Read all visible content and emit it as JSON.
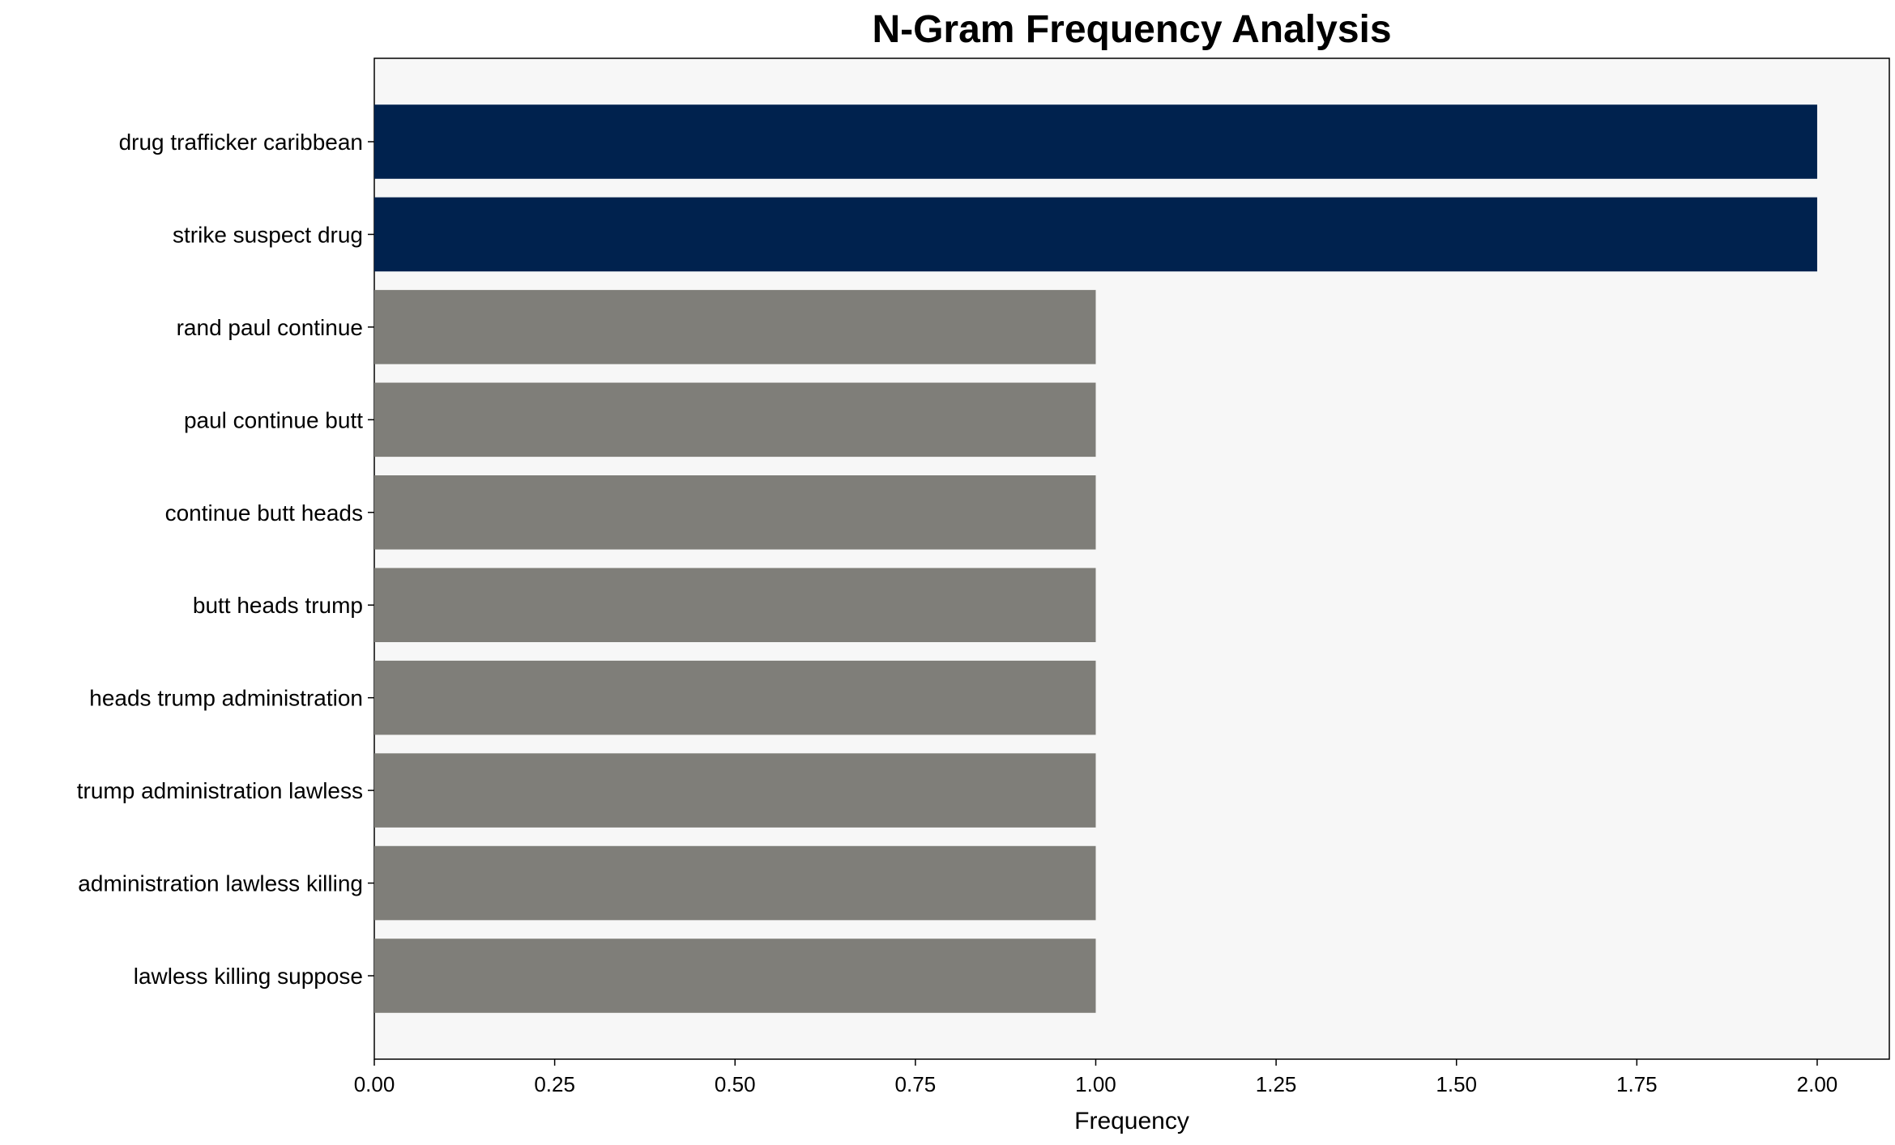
{
  "chart_data": {
    "type": "bar",
    "orientation": "horizontal",
    "title": "N-Gram Frequency Analysis",
    "xlabel": "Frequency",
    "ylabel": "",
    "categories": [
      "drug trafficker caribbean",
      "strike suspect drug",
      "rand paul continue",
      "paul continue butt",
      "continue butt heads",
      "butt heads trump",
      "heads trump administration",
      "trump administration lawless",
      "administration lawless killing",
      "lawless killing suppose"
    ],
    "values": [
      2,
      2,
      1,
      1,
      1,
      1,
      1,
      1,
      1,
      1
    ],
    "xlim": [
      0,
      2.1
    ],
    "xticks": [
      "0.00",
      "0.25",
      "0.50",
      "0.75",
      "1.00",
      "1.25",
      "1.50",
      "1.75",
      "2.00"
    ],
    "grid": false,
    "colors": {
      "top_bars": "#00224e",
      "other_bars": "#7f7e79",
      "plot_background": "#f7f7f7"
    }
  }
}
